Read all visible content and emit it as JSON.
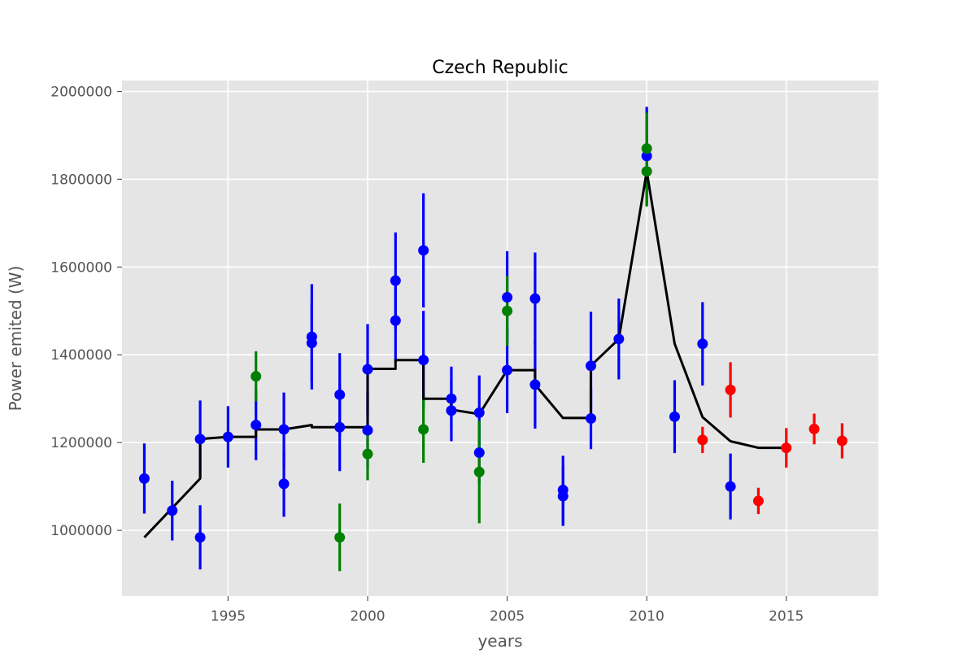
{
  "chart_data": {
    "type": "scatter",
    "title": "Czech Republic",
    "xlabel": "years",
    "ylabel": "Power emited (W)",
    "xlim": [
      1991.2,
      2018.3
    ],
    "ylim": [
      850000,
      2025000
    ],
    "xticks": [
      1995,
      2000,
      2005,
      2010,
      2015
    ],
    "yticks": [
      1000000,
      1200000,
      1400000,
      1600000,
      1800000,
      2000000
    ],
    "grid": true,
    "style": "ggplot",
    "colors": {
      "blue": "#0000ff",
      "green": "#008000",
      "red": "#ff0000",
      "line": "#000000",
      "plot_background": "#e5e5e5",
      "grid": "#ffffff"
    },
    "series": [
      {
        "color": "blue",
        "points": [
          {
            "x": 1992,
            "y": 1118000,
            "err": 80000
          },
          {
            "x": 1993,
            "y": 1045000,
            "err": 68000
          },
          {
            "x": 1994,
            "y": 1208000,
            "err": 88000
          },
          {
            "x": 1994,
            "y": 984000,
            "err": 73000
          },
          {
            "x": 1995,
            "y": 1213000,
            "err": 70000
          },
          {
            "x": 1996,
            "y": 1240000,
            "err": 80000
          },
          {
            "x": 1997,
            "y": 1230000,
            "err": 84000
          },
          {
            "x": 1997,
            "y": 1106000,
            "err": 75000
          },
          {
            "x": 1998,
            "y": 1441000,
            "err": 120000
          },
          {
            "x": 1998,
            "y": 1427000,
            "err": 90000
          },
          {
            "x": 1999,
            "y": 1309000,
            "err": 95000
          },
          {
            "x": 1999,
            "y": 1235000,
            "err": 100000
          },
          {
            "x": 2000,
            "y": 1367000,
            "err": 103000
          },
          {
            "x": 2000,
            "y": 1228000,
            "err": 85000
          },
          {
            "x": 2001,
            "y": 1569000,
            "err": 110000
          },
          {
            "x": 2001,
            "y": 1478000,
            "err": 95000
          },
          {
            "x": 2002,
            "y": 1638000,
            "err": 130000
          },
          {
            "x": 2002,
            "y": 1388000,
            "err": 112000
          },
          {
            "x": 2003,
            "y": 1300000,
            "err": 73000
          },
          {
            "x": 2003,
            "y": 1273000,
            "err": 70000
          },
          {
            "x": 2004,
            "y": 1268000,
            "err": 85000
          },
          {
            "x": 2004,
            "y": 1177000,
            "err": 70000
          },
          {
            "x": 2005,
            "y": 1531000,
            "err": 105000
          },
          {
            "x": 2005,
            "y": 1365000,
            "err": 98000
          },
          {
            "x": 2006,
            "y": 1528000,
            "err": 105000
          },
          {
            "x": 2006,
            "y": 1332000,
            "err": 100000
          },
          {
            "x": 2007,
            "y": 1092000,
            "err": 78000
          },
          {
            "x": 2007,
            "y": 1078000,
            "err": 68000
          },
          {
            "x": 2008,
            "y": 1375000,
            "err": 123000
          },
          {
            "x": 2008,
            "y": 1255000,
            "err": 70000
          },
          {
            "x": 2009,
            "y": 1436000,
            "err": 92000
          },
          {
            "x": 2010,
            "y": 1853000,
            "err": 112000
          },
          {
            "x": 2011,
            "y": 1259000,
            "err": 83000
          },
          {
            "x": 2012,
            "y": 1425000,
            "err": 95000
          },
          {
            "x": 2013,
            "y": 1100000,
            "err": 75000
          }
        ]
      },
      {
        "color": "green",
        "points": [
          {
            "x": 1996,
            "y": 1351000,
            "err": 57000
          },
          {
            "x": 1999,
            "y": 984000,
            "err": 77000
          },
          {
            "x": 2000,
            "y": 1174000,
            "err": 60000
          },
          {
            "x": 2002,
            "y": 1230000,
            "err": 76000
          },
          {
            "x": 2004,
            "y": 1133000,
            "err": 117000
          },
          {
            "x": 2005,
            "y": 1500000,
            "err": 80000
          },
          {
            "x": 2010,
            "y": 1870000,
            "err": 82000
          },
          {
            "x": 2010,
            "y": 1818000,
            "err": 80000
          }
        ]
      },
      {
        "color": "red",
        "points": [
          {
            "x": 2012,
            "y": 1206000,
            "err": 30000
          },
          {
            "x": 2013,
            "y": 1320000,
            "err": 63000
          },
          {
            "x": 2014,
            "y": 1067000,
            "err": 30000
          },
          {
            "x": 2015,
            "y": 1188000,
            "err": 45000
          },
          {
            "x": 2016,
            "y": 1231000,
            "err": 35000
          },
          {
            "x": 2017,
            "y": 1204000,
            "err": 40000
          }
        ]
      }
    ],
    "line": [
      {
        "x": 1992,
        "y": 984000
      },
      {
        "x": 1994,
        "y": 1118000
      },
      {
        "x": 1994,
        "y": 1208000
      },
      {
        "x": 1995,
        "y": 1213000
      },
      {
        "x": 1996,
        "y": 1213000
      },
      {
        "x": 1996,
        "y": 1230000
      },
      {
        "x": 1997,
        "y": 1230000
      },
      {
        "x": 1998,
        "y": 1240000
      },
      {
        "x": 1998,
        "y": 1235000
      },
      {
        "x": 2000,
        "y": 1235000
      },
      {
        "x": 2000,
        "y": 1368000
      },
      {
        "x": 2001,
        "y": 1368000
      },
      {
        "x": 2001,
        "y": 1388000
      },
      {
        "x": 2002,
        "y": 1388000
      },
      {
        "x": 2002,
        "y": 1300000
      },
      {
        "x": 2003,
        "y": 1300000
      },
      {
        "x": 2003,
        "y": 1275000
      },
      {
        "x": 2004,
        "y": 1265000
      },
      {
        "x": 2005,
        "y": 1365000
      },
      {
        "x": 2006,
        "y": 1365000
      },
      {
        "x": 2006,
        "y": 1332000
      },
      {
        "x": 2007,
        "y": 1256000
      },
      {
        "x": 2008,
        "y": 1256000
      },
      {
        "x": 2008,
        "y": 1375000
      },
      {
        "x": 2009,
        "y": 1436000
      },
      {
        "x": 2010,
        "y": 1818000
      },
      {
        "x": 2011,
        "y": 1425000
      },
      {
        "x": 2012,
        "y": 1258000
      },
      {
        "x": 2013,
        "y": 1203000
      },
      {
        "x": 2014,
        "y": 1188000
      },
      {
        "x": 2015,
        "y": 1188000
      }
    ]
  }
}
